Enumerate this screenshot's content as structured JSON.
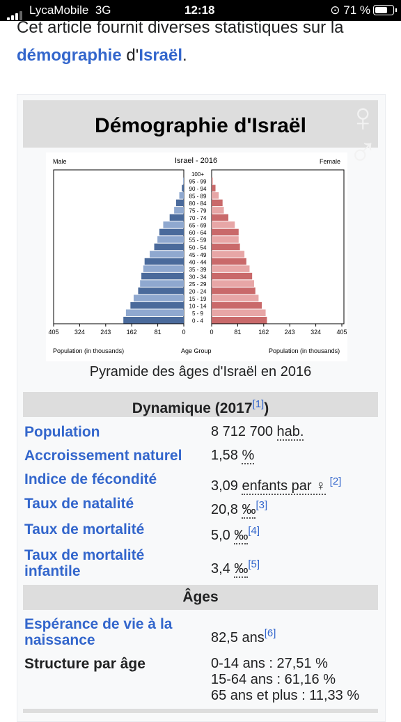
{
  "status_bar": {
    "carrier": "LycaMobile",
    "network": "3G",
    "time": "12:18",
    "battery": "71 %"
  },
  "intro": {
    "text_before": "Cet article fournit diverses statistiques sur la",
    "link1": "démographie",
    "middle": " d'",
    "link2": "Israël",
    "end": "."
  },
  "infobox": {
    "title": "Démographie d'Israël",
    "pyramid": {
      "title": "Israel - 2016",
      "left_label": "Male",
      "right_label": "Female",
      "x_label_left": "Population (in thousands)",
      "x_label_center": "Age Group",
      "x_label_right": "Population (in thousands)",
      "x_ticks": [
        "405",
        "324",
        "243",
        "162",
        "81",
        "0",
        "0",
        "81",
        "162",
        "243",
        "324",
        "405"
      ]
    },
    "caption": "Pyramide des âges d'Israël en 2016",
    "section1": {
      "title": "Dynamique (2017",
      "ref": "[1]",
      "close": ")"
    },
    "rows": [
      {
        "label": "Population",
        "value": "8 712 700 ",
        "unit": "hab.",
        "ref": ""
      },
      {
        "label": "Accroissement naturel",
        "value": " 1,58 ",
        "unit": "%",
        "ref": ""
      },
      {
        "label": "Indice de fécondité",
        "value": "3,09 ",
        "unit": "enfants par ♀",
        "ref": "[2]"
      },
      {
        "label": "Taux de natalité",
        "value": "20,8 ",
        "unit": "‰",
        "ref": "[3]"
      },
      {
        "label": "Taux de mortalité",
        "value": "5,0 ",
        "unit": "‰",
        "ref": "[4]"
      },
      {
        "label1": "Taux de mortalité",
        "label2": "infantile",
        "value": "3,4 ",
        "unit": "‰",
        "ref": "[5]"
      }
    ],
    "section2": {
      "title": "Âges"
    },
    "life": {
      "label1": "Espérance de vie à la",
      "label2": "naissance",
      "value": "82,5 ans",
      "ref": "[6]"
    },
    "structure": {
      "label": "Structure par âge",
      "line1": "0-14 ans : 27,51 %",
      "line2": "15-64 ans : 61,16 %",
      "line3": "65 ans et plus : 11,33 %"
    }
  },
  "chart_data": {
    "type": "bar",
    "title": "Israel - 2016",
    "xlabel": "Population (in thousands)",
    "ylabel": "Age Group",
    "xlim": [
      0,
      405
    ],
    "categories": [
      "100+",
      "95 - 99",
      "90 - 94",
      "85 - 89",
      "80 - 84",
      "75 - 79",
      "70 - 74",
      "65 - 69",
      "60 - 64",
      "55 - 59",
      "50 - 54",
      "45 - 49",
      "40 - 44",
      "35 - 39",
      "30 - 34",
      "25 - 29",
      "20 - 24",
      "15 - 19",
      "10 - 14",
      "5 - 9",
      "0 - 4"
    ],
    "series": [
      {
        "name": "Male",
        "values": [
          0,
          2,
          6,
          14,
          24,
          30,
          44,
          64,
          76,
          82,
          92,
          106,
          122,
          126,
          132,
          136,
          142,
          156,
          166,
          180,
          188
        ],
        "color": "#4a6a9b"
      },
      {
        "name": "Female",
        "values": [
          0,
          4,
          12,
          22,
          34,
          38,
          52,
          72,
          84,
          84,
          88,
          102,
          108,
          118,
          126,
          132,
          136,
          146,
          156,
          168,
          172
        ],
        "color": "#c9696a"
      }
    ]
  }
}
